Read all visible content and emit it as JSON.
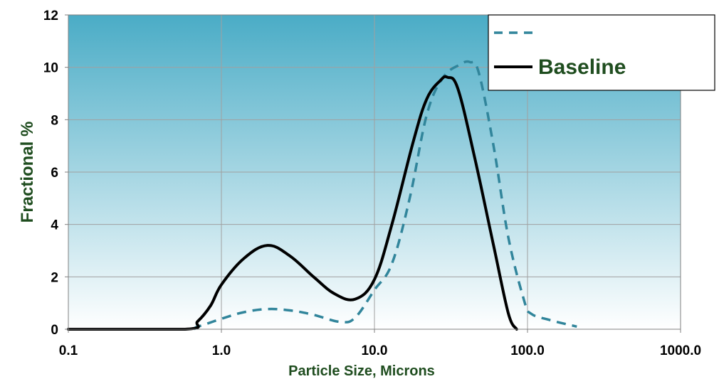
{
  "chart_data": {
    "type": "line",
    "x_scale": "log",
    "xlim": [
      0.1,
      1000
    ],
    "ylim": [
      0,
      12
    ],
    "xlabel": "Particle Size, Microns",
    "ylabel": "Fractional %",
    "x_ticks": [
      0.1,
      1,
      10,
      100,
      1000
    ],
    "x_tick_labels": [
      "0.1",
      "1.0",
      "10.0",
      "100.0",
      "1000.0"
    ],
    "y_ticks": [
      0,
      2,
      4,
      6,
      8,
      10,
      12
    ],
    "y_tick_labels": [
      "0",
      "2",
      "4",
      "6",
      "8",
      "10",
      "12"
    ],
    "grid": true,
    "legend_position": "top-right",
    "background": {
      "top_color": "#4aacc6",
      "bottom_color": "#ffffff"
    },
    "series": [
      {
        "name": "",
        "style": "dashed",
        "color": "#31859b",
        "points": [
          [
            0.1,
            0
          ],
          [
            0.55,
            0
          ],
          [
            0.7,
            0.1
          ],
          [
            1.0,
            0.4
          ],
          [
            1.4,
            0.65
          ],
          [
            2.0,
            0.77
          ],
          [
            2.8,
            0.72
          ],
          [
            4.0,
            0.55
          ],
          [
            6.0,
            0.28
          ],
          [
            7.5,
            0.45
          ],
          [
            10,
            1.5
          ],
          [
            13,
            2.5
          ],
          [
            17,
            5.0
          ],
          [
            22,
            8.2
          ],
          [
            28,
            9.6
          ],
          [
            36,
            10.1
          ],
          [
            42,
            10.2
          ],
          [
            48,
            9.8
          ],
          [
            60,
            7.0
          ],
          [
            75,
            3.5
          ],
          [
            95,
            1.1
          ],
          [
            105,
            0.6
          ],
          [
            140,
            0.35
          ],
          [
            210,
            0.1
          ]
        ]
      },
      {
        "name": "Baseline",
        "style": "solid",
        "color": "#000000",
        "points": [
          [
            0.1,
            0
          ],
          [
            0.58,
            0
          ],
          [
            0.7,
            0.3
          ],
          [
            0.85,
            0.9
          ],
          [
            1.0,
            1.7
          ],
          [
            1.4,
            2.7
          ],
          [
            2.0,
            3.2
          ],
          [
            2.8,
            2.8
          ],
          [
            4.0,
            2.0
          ],
          [
            5.5,
            1.35
          ],
          [
            7.5,
            1.15
          ],
          [
            10,
            1.9
          ],
          [
            13,
            4.0
          ],
          [
            18,
            7.2
          ],
          [
            22,
            8.8
          ],
          [
            27,
            9.5
          ],
          [
            30,
            9.62
          ],
          [
            35,
            9.2
          ],
          [
            45,
            6.6
          ],
          [
            60,
            3.2
          ],
          [
            75,
            0.6
          ],
          [
            85,
            0
          ]
        ]
      }
    ]
  }
}
